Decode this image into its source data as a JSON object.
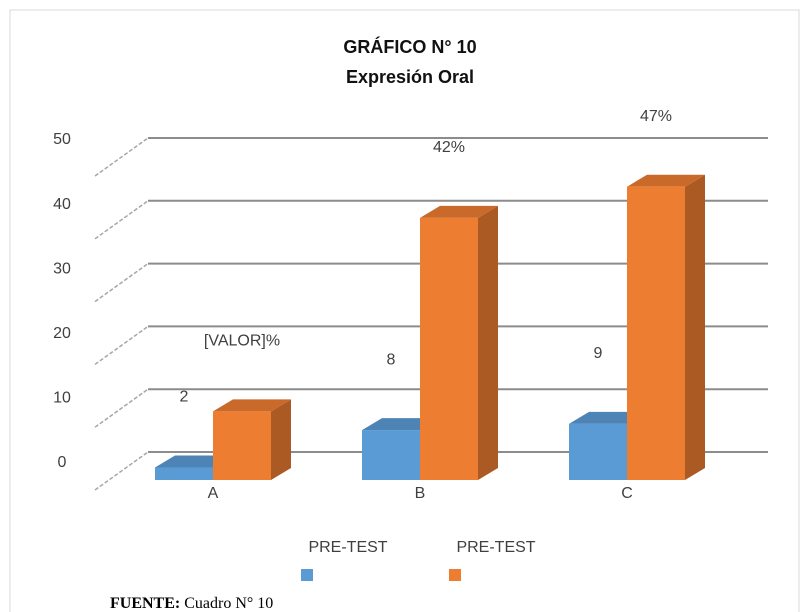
{
  "chart_data": {
    "type": "bar3d",
    "title": "GRÁFICO N° 10",
    "subtitle": "Expresión Oral",
    "categories": [
      "A",
      "B",
      "C"
    ],
    "series": [
      {
        "name": "PRE-TEST",
        "color": "#5b9bd5",
        "values": [
          2,
          8,
          9
        ],
        "value_labels": [
          "2",
          "8",
          "9"
        ]
      },
      {
        "name": "PRE-TEST",
        "color": "#ed7d31",
        "values": [
          11,
          42,
          47
        ],
        "value_labels": [
          "[VALOR]%",
          "42%",
          "47%"
        ]
      }
    ],
    "ylim": [
      0,
      50
    ],
    "yticks": [
      0,
      10,
      20,
      30,
      40,
      50
    ],
    "grid": true,
    "legend": "bottom",
    "source_label": "FUENTE:",
    "source": "Cuadro N° 10"
  }
}
